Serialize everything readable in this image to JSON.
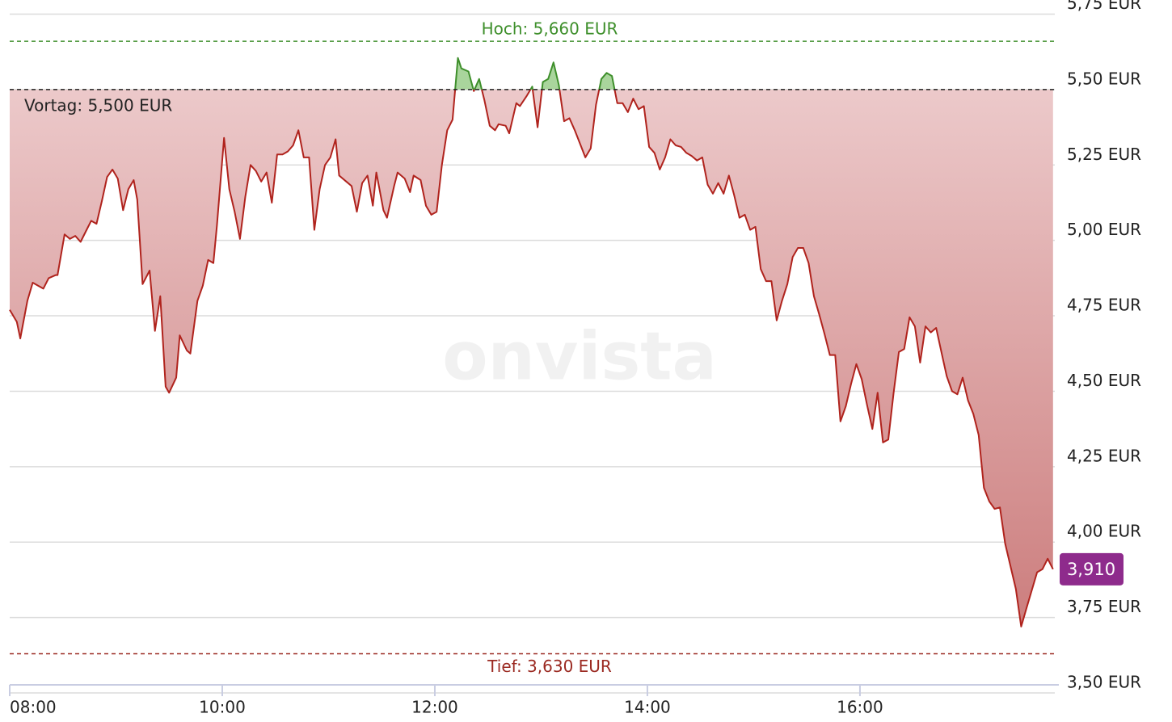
{
  "chart_data": {
    "type": "area",
    "watermark": "onvista",
    "color": "#b0231d",
    "up_color": "#3e8f2b",
    "x": [
      "08:00",
      "08:04",
      "08:06",
      "08:10",
      "08:13",
      "08:16",
      "08:19",
      "08:22",
      "08:26",
      "08:27",
      "08:31",
      "08:34",
      "08:37",
      "08:40",
      "08:43",
      "08:46",
      "08:49",
      "08:52",
      "08:55",
      "08:58",
      "09:01",
      "09:04",
      "09:07",
      "09:10",
      "09:12",
      "09:15",
      "09:19",
      "09:22",
      "09:25",
      "09:28",
      "09:30",
      "09:34",
      "09:36",
      "09:40",
      "09:42",
      "09:46",
      "09:49",
      "09:52",
      "09:55",
      "09:57",
      "10:01",
      "10:04",
      "10:07",
      "10:10",
      "10:13",
      "10:16",
      "10:19",
      "10:22",
      "10:25",
      "10:28",
      "10:31",
      "10:34",
      "10:37",
      "10:40",
      "10:43",
      "10:46",
      "10:49",
      "10:52",
      "10:55",
      "10:58",
      "11:01",
      "11:04",
      "11:06",
      "11:10",
      "11:13",
      "11:16",
      "11:19",
      "11:22",
      "11:25",
      "11:27",
      "11:31",
      "11:33",
      "11:37",
      "11:39",
      "11:43",
      "11:46",
      "11:48",
      "11:52",
      "11:55",
      "11:58",
      "12:01",
      "12:04",
      "12:07",
      "12:10",
      "12:13",
      "12:15",
      "12:19",
      "12:22",
      "12:25",
      "12:28",
      "12:31",
      "12:34",
      "12:36",
      "12:40",
      "12:42",
      "12:46",
      "12:48",
      "12:52",
      "12:55",
      "12:58",
      "13:01",
      "13:04",
      "13:07",
      "13:10",
      "13:13",
      "13:16",
      "13:19",
      "13:22",
      "13:25",
      "13:28",
      "13:31",
      "13:34",
      "13:37",
      "13:40",
      "13:43",
      "13:46",
      "13:49",
      "13:52",
      "13:55",
      "13:58",
      "14:01",
      "14:04",
      "14:07",
      "14:10",
      "14:13",
      "14:16",
      "14:19",
      "14:22",
      "14:25",
      "14:28",
      "14:31",
      "14:34",
      "14:37",
      "14:40",
      "14:43",
      "14:46",
      "14:49",
      "14:52",
      "14:55",
      "14:58",
      "15:01",
      "15:04",
      "15:07",
      "15:10",
      "15:13",
      "15:16",
      "15:19",
      "15:22",
      "15:25",
      "15:28",
      "15:31",
      "15:34",
      "15:37",
      "15:40",
      "15:43",
      "15:46",
      "15:49",
      "15:52",
      "15:55",
      "15:58",
      "16:01",
      "16:04",
      "16:07",
      "16:10",
      "16:13",
      "16:16",
      "16:19",
      "16:22",
      "16:25",
      "16:28",
      "16:31",
      "16:34",
      "16:37",
      "16:40",
      "16:43",
      "16:46",
      "16:49",
      "16:52",
      "16:55",
      "16:58",
      "17:01",
      "17:04",
      "17:07",
      "17:10",
      "17:13",
      "17:16",
      "17:19",
      "17:22",
      "17:25",
      "17:28",
      "17:31",
      "17:34",
      "17:37",
      "17:40",
      "17:43",
      "17:46",
      "17:49"
    ],
    "values": [
      4.77,
      4.73,
      4.675,
      4.8,
      4.86,
      4.85,
      4.84,
      4.875,
      4.885,
      4.885,
      5.02,
      5.005,
      5.015,
      4.995,
      5.03,
      5.065,
      5.055,
      5.13,
      5.21,
      5.235,
      5.205,
      5.1,
      5.17,
      5.2,
      5.135,
      4.855,
      4.9,
      4.7,
      4.815,
      4.515,
      4.495,
      4.545,
      4.685,
      4.635,
      4.625,
      4.8,
      4.85,
      4.935,
      4.925,
      5.05,
      5.34,
      5.17,
      5.095,
      5.005,
      5.145,
      5.25,
      5.23,
      5.195,
      5.225,
      5.125,
      5.285,
      5.285,
      5.295,
      5.315,
      5.365,
      5.275,
      5.275,
      5.035,
      5.17,
      5.25,
      5.275,
      5.335,
      5.215,
      5.195,
      5.18,
      5.095,
      5.19,
      5.215,
      5.115,
      5.225,
      5.1,
      5.075,
      5.18,
      5.225,
      5.205,
      5.16,
      5.215,
      5.2,
      5.115,
      5.085,
      5.095,
      5.25,
      5.365,
      5.4,
      5.605,
      5.57,
      5.56,
      5.495,
      5.535,
      5.465,
      5.38,
      5.365,
      5.385,
      5.38,
      5.355,
      5.455,
      5.445,
      5.48,
      5.51,
      5.375,
      5.525,
      5.535,
      5.59,
      5.515,
      5.395,
      5.405,
      5.365,
      5.32,
      5.275,
      5.305,
      5.45,
      5.535,
      5.555,
      5.545,
      5.455,
      5.455,
      5.425,
      5.47,
      5.435,
      5.445,
      5.31,
      5.29,
      5.235,
      5.275,
      5.335,
      5.315,
      5.31,
      5.29,
      5.28,
      5.265,
      5.275,
      5.185,
      5.155,
      5.19,
      5.155,
      5.215,
      5.15,
      5.075,
      5.085,
      5.035,
      5.045,
      4.905,
      4.865,
      4.865,
      4.735,
      4.8,
      4.855,
      4.945,
      4.975,
      4.975,
      4.925,
      4.815,
      4.755,
      4.69,
      4.62,
      4.62,
      4.4,
      4.45,
      4.525,
      4.59,
      4.54,
      4.455,
      4.375,
      4.495,
      4.33,
      4.34,
      4.495,
      4.63,
      4.64,
      4.745,
      4.715,
      4.595,
      4.715,
      4.695,
      4.71,
      4.63,
      4.55,
      4.5,
      4.49,
      4.545,
      4.47,
      4.425,
      4.355,
      4.18,
      4.135,
      4.11,
      4.115,
      3.995,
      3.92,
      3.845,
      3.72,
      3.78,
      3.84,
      3.9,
      3.91,
      3.945,
      3.91
    ],
    "xlim": [
      "08:00",
      "17:50"
    ],
    "xticks": [
      "08:00",
      "10:00",
      "12:00",
      "14:00",
      "16:00"
    ],
    "ylim": [
      3.5,
      5.75
    ],
    "yticks": [
      {
        "value": 3.5,
        "label": "3,50 EUR"
      },
      {
        "value": 3.75,
        "label": "3,75 EUR"
      },
      {
        "value": 4.0,
        "label": "4,00 EUR"
      },
      {
        "value": 4.25,
        "label": "4,25 EUR"
      },
      {
        "value": 4.5,
        "label": "4,50 EUR"
      },
      {
        "value": 4.75,
        "label": "4,75 EUR"
      },
      {
        "value": 5.0,
        "label": "5,00 EUR"
      },
      {
        "value": 5.25,
        "label": "5,25 EUR"
      },
      {
        "value": 5.5,
        "label": "5,50 EUR"
      },
      {
        "value": 5.75,
        "label": "5,75 EUR"
      }
    ],
    "grid": true,
    "high": {
      "value": 5.66,
      "label": "Hoch: 5,660 EUR",
      "color": "#3e8f2b"
    },
    "previous_close": {
      "value": 5.5,
      "label": "Vortag: 5,500 EUR",
      "color": "#222222"
    },
    "low": {
      "value": 3.63,
      "label": "Tief: 3,630 EUR",
      "color": "#9b2a22"
    },
    "last_value": {
      "value": 3.91,
      "label": "3,910",
      "color": "#8e2b8c"
    }
  }
}
